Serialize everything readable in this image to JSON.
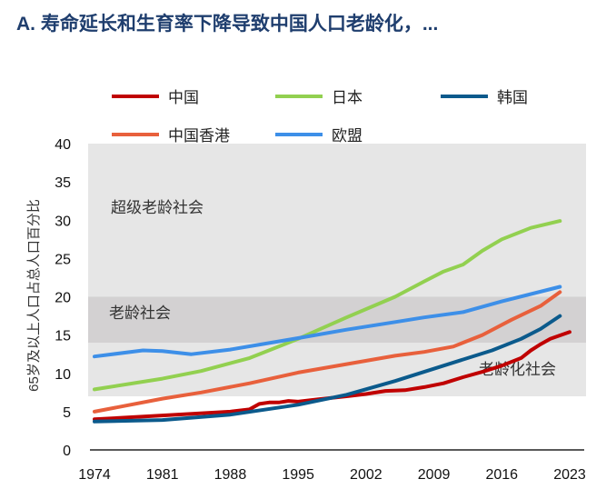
{
  "title": "A. 寿命延长和生育率下降导致中国人口老龄化，...",
  "chart_data": {
    "type": "line",
    "title": "A. 寿命延长和生育率下降导致中国人口老龄化，...",
    "xlabel": "",
    "ylabel": "65岁及以上人口占总人口百分比",
    "xlim": [
      1974,
      2023
    ],
    "ylim": [
      0,
      40
    ],
    "xticks": [
      1974,
      1981,
      1988,
      1995,
      2002,
      2009,
      2016,
      2023
    ],
    "yticks": [
      0,
      5,
      10,
      15,
      20,
      25,
      30,
      35,
      40
    ],
    "grid": false,
    "legend": "top",
    "bands": [
      {
        "label": "老龄化社会",
        "from": 7,
        "to": 14,
        "color": "#e6e6e6"
      },
      {
        "label": "老龄社会",
        "from": 14,
        "to": 20,
        "color": "#d3d1d2"
      },
      {
        "label": "超级老龄社会",
        "from": 20,
        "to": 40,
        "color": "#e6e6e6"
      }
    ],
    "series": [
      {
        "name": "中国",
        "color": "#c00000",
        "x": [
          1974,
          1981,
          1988,
          1990,
          1991,
          1992,
          1993,
          1994,
          1995,
          1997,
          2000,
          2002,
          2004,
          2006,
          2008,
          2010,
          2012,
          2014,
          2016,
          2018,
          2019,
          2020,
          2021,
          2023
        ],
        "y": [
          4.0,
          4.5,
          5.0,
          5.3,
          6.0,
          6.2,
          6.2,
          6.4,
          6.3,
          6.6,
          7.0,
          7.3,
          7.7,
          7.8,
          8.2,
          8.7,
          9.5,
          10.2,
          11.0,
          12.0,
          13.0,
          13.8,
          14.5,
          15.4
        ]
      },
      {
        "name": "日本",
        "color": "#92d050",
        "x": [
          1974,
          1981,
          1985,
          1990,
          1995,
          2000,
          2005,
          2008,
          2010,
          2012,
          2014,
          2016,
          2019,
          2022
        ],
        "y": [
          7.9,
          9.3,
          10.3,
          12.0,
          14.5,
          17.3,
          20.0,
          22.0,
          23.3,
          24.2,
          26.0,
          27.5,
          29.0,
          29.9
        ]
      },
      {
        "name": "韩国",
        "color": "#0b5a8c",
        "x": [
          1974,
          1981,
          1988,
          1995,
          2000,
          2005,
          2010,
          2015,
          2018,
          2020,
          2022
        ],
        "y": [
          3.7,
          3.9,
          4.6,
          5.9,
          7.2,
          9.0,
          11.0,
          13.0,
          14.5,
          15.8,
          17.5
        ]
      },
      {
        "name": "中国香港",
        "color": "#e8603c",
        "x": [
          1974,
          1981,
          1985,
          1990,
          1995,
          2000,
          2005,
          2008,
          2011,
          2014,
          2017,
          2020,
          2022
        ],
        "y": [
          5.0,
          6.7,
          7.5,
          8.7,
          10.1,
          11.2,
          12.3,
          12.8,
          13.5,
          15.0,
          17.0,
          18.8,
          20.6
        ]
      },
      {
        "name": "欧盟",
        "color": "#3d8fe8",
        "x": [
          1974,
          1979,
          1981,
          1984,
          1988,
          1995,
          2000,
          2005,
          2008,
          2012,
          2016,
          2022
        ],
        "y": [
          12.2,
          13.0,
          12.9,
          12.5,
          13.1,
          14.6,
          15.7,
          16.7,
          17.3,
          18.0,
          19.4,
          21.3
        ]
      }
    ]
  }
}
